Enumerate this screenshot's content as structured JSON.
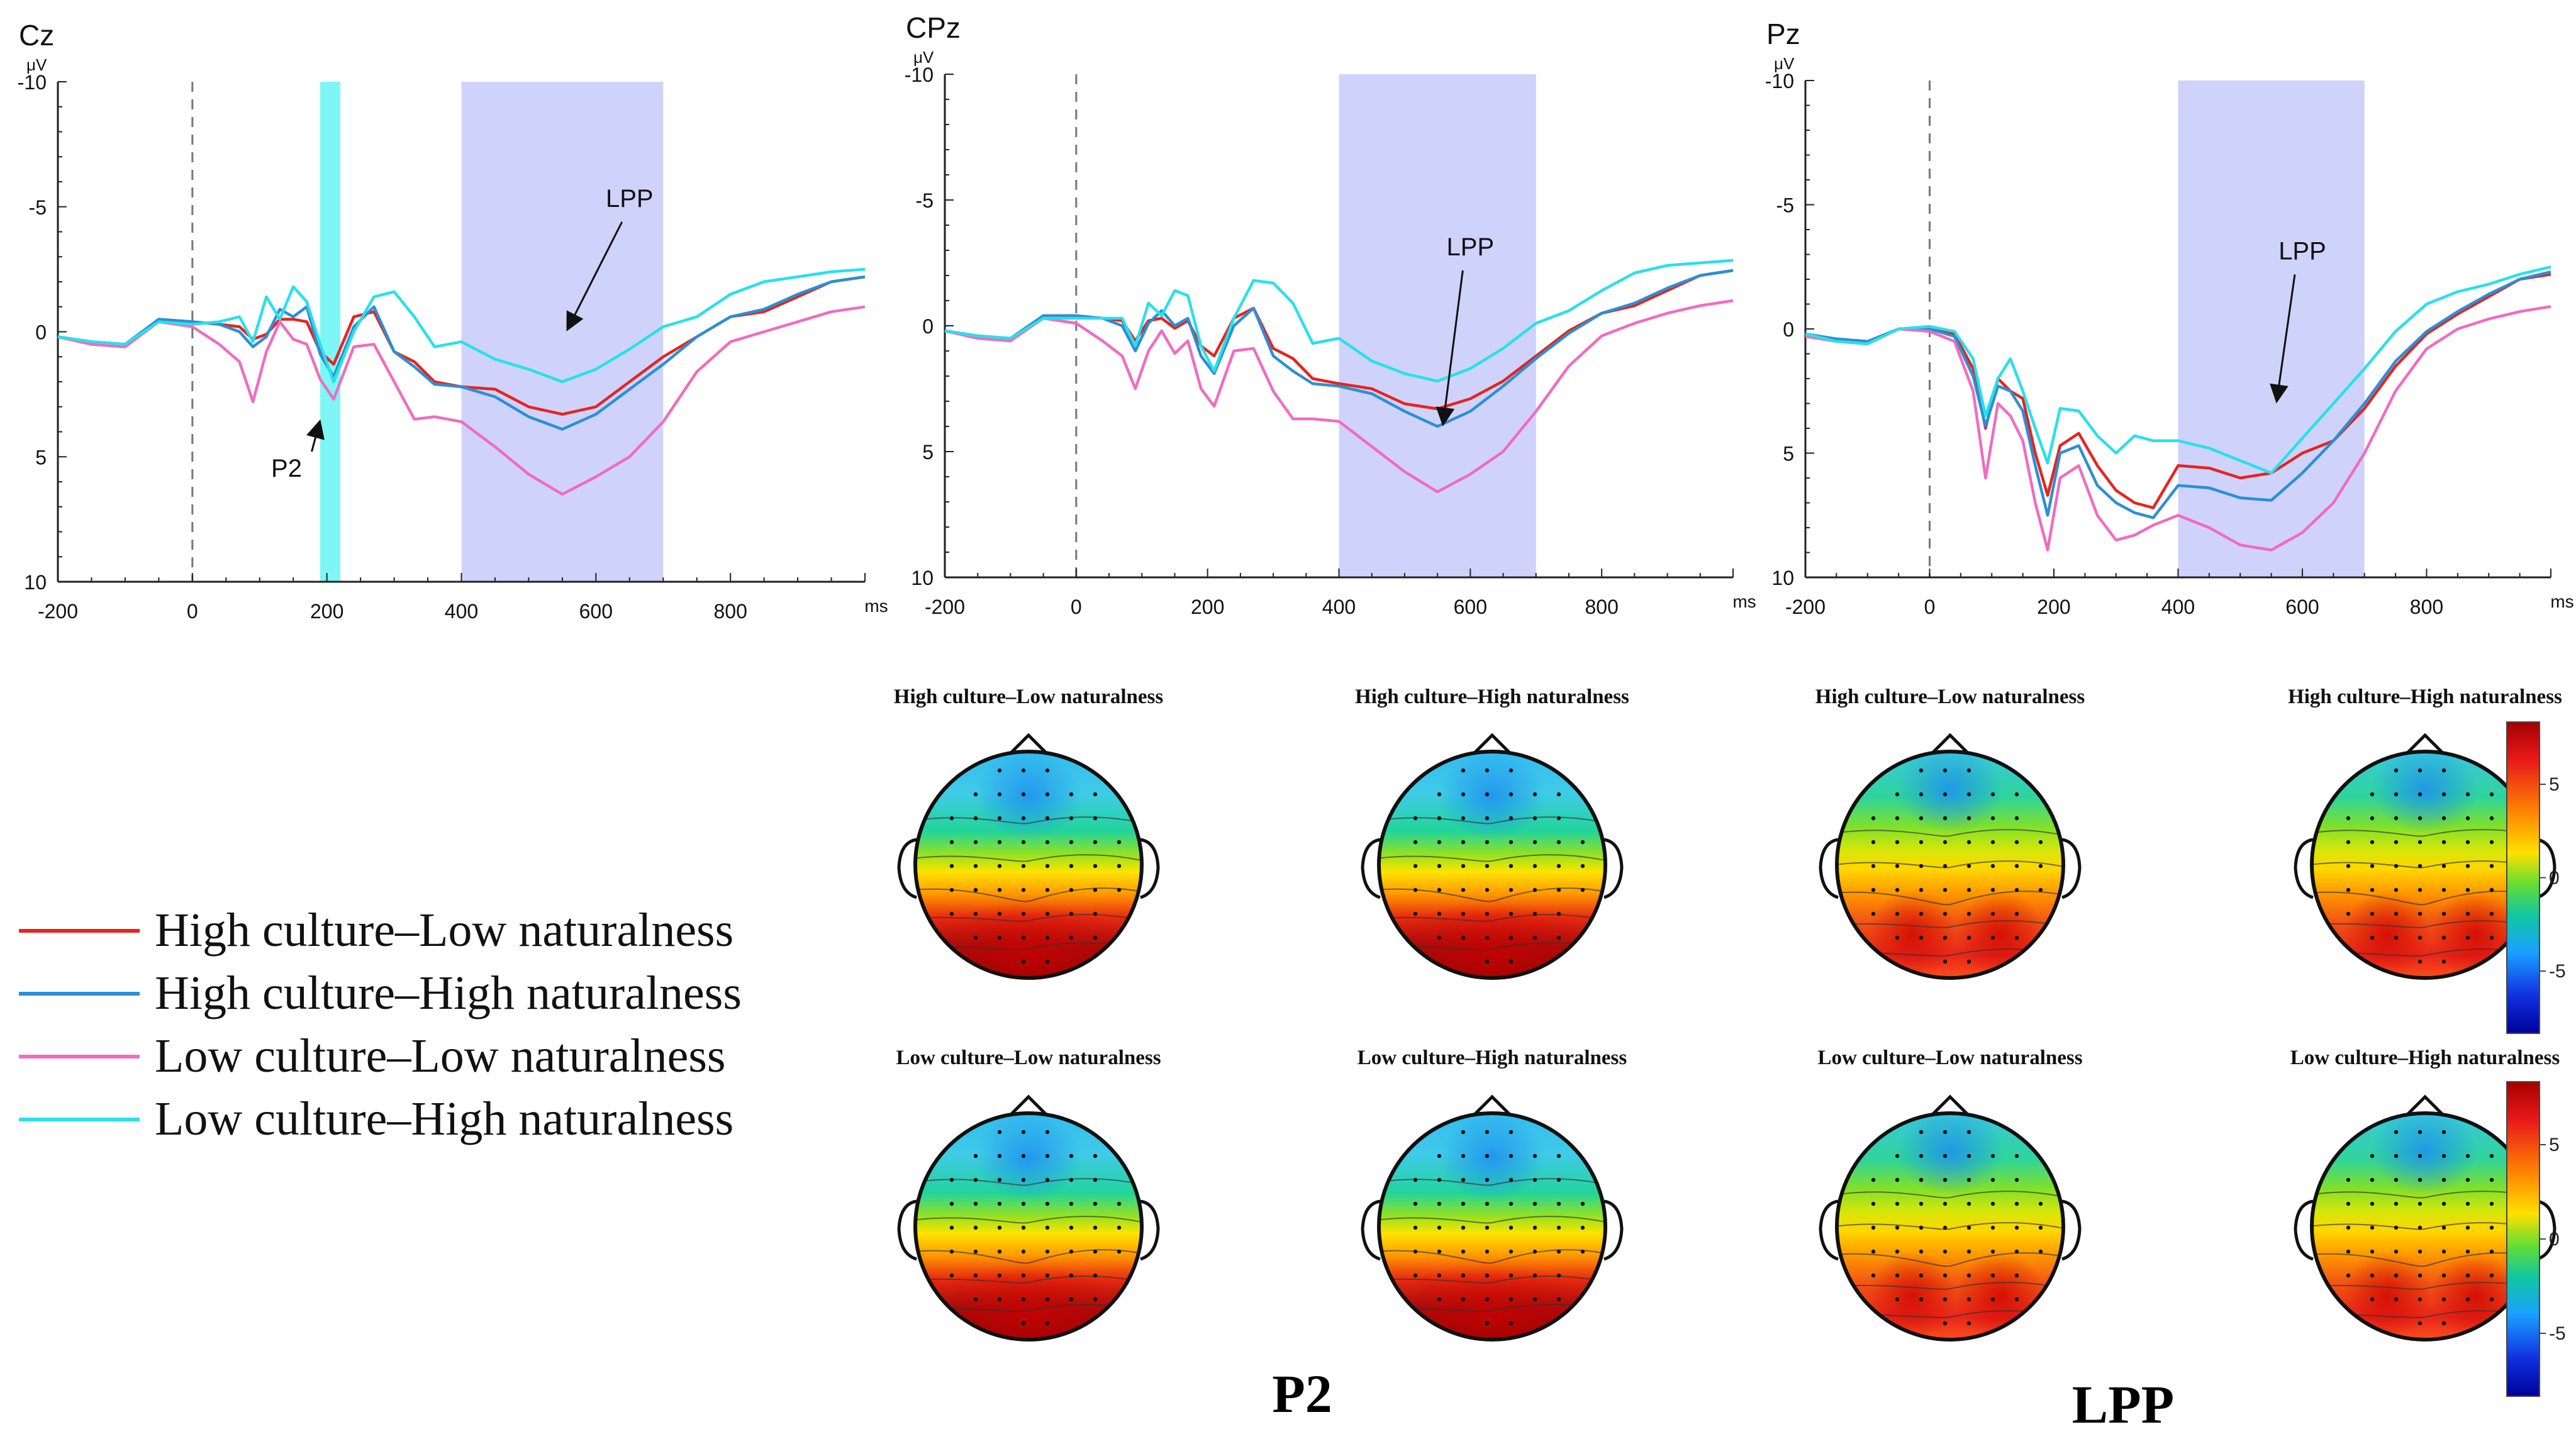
{
  "colors": {
    "s1": "#e8231e",
    "s2": "#2b8fd6",
    "s3": "#f06cc0",
    "s4": "#29e0ea",
    "p2_window": "#7ff6f6",
    "lpp_window": "#cfd3fb"
  },
  "chart_data": [
    {
      "type": "line",
      "title": "Cz",
      "ylabel": "μV",
      "xlabel": "ms",
      "xlim": [
        -200,
        1000
      ],
      "ylim": [
        10,
        -10
      ],
      "x_ticks": [
        "-200",
        "0",
        "200",
        "400",
        "600",
        "800"
      ],
      "y_ticks": [
        "-10",
        "-5",
        "0",
        "5",
        "10"
      ],
      "windows": [
        {
          "start": 190,
          "end": 220,
          "label": "P2"
        },
        {
          "start": 400,
          "end": 700,
          "label": "LPP"
        }
      ],
      "annotations": [
        {
          "text": "LPP",
          "x": 650,
          "y": -5
        },
        {
          "text": "P2",
          "x": 140,
          "y": 5.8
        }
      ],
      "x": [
        -200,
        -150,
        -100,
        -50,
        0,
        40,
        70,
        90,
        110,
        130,
        150,
        170,
        190,
        210,
        240,
        270,
        300,
        330,
        360,
        400,
        450,
        500,
        550,
        600,
        650,
        700,
        750,
        800,
        850,
        900,
        950,
        1000
      ],
      "series": [
        {
          "values": [
            0.2,
            0.5,
            0.6,
            -0.5,
            -0.4,
            -0.3,
            -0.2,
            0.3,
            0.1,
            -0.5,
            -0.5,
            -0.4,
            0.8,
            1.3,
            -0.6,
            -0.8,
            0.8,
            1.2,
            2.0,
            2.2,
            2.3,
            3.0,
            3.3,
            3.0,
            2.0,
            1.0,
            0.2,
            -0.6,
            -0.8,
            -1.4,
            -2.0,
            -2.2
          ]
        },
        {
          "values": [
            0.2,
            0.4,
            0.5,
            -0.5,
            -0.4,
            -0.3,
            0.0,
            0.6,
            0.2,
            -0.9,
            -0.6,
            -1.0,
            0.9,
            1.8,
            -0.2,
            -1.0,
            0.8,
            1.4,
            2.1,
            2.2,
            2.6,
            3.4,
            3.9,
            3.3,
            2.3,
            1.3,
            0.2,
            -0.6,
            -0.9,
            -1.5,
            -2.0,
            -2.2
          ]
        },
        {
          "values": [
            0.2,
            0.5,
            0.6,
            -0.4,
            -0.2,
            0.5,
            1.2,
            2.8,
            0.8,
            -0.4,
            0.3,
            0.5,
            1.9,
            2.7,
            0.6,
            0.5,
            2.0,
            3.5,
            3.4,
            3.6,
            4.6,
            5.7,
            6.5,
            5.8,
            5.0,
            3.6,
            1.6,
            0.4,
            0.0,
            -0.4,
            -0.8,
            -1.0
          ]
        },
        {
          "values": [
            0.2,
            0.4,
            0.5,
            -0.4,
            -0.3,
            -0.4,
            -0.6,
            0.4,
            -1.4,
            -0.5,
            -1.8,
            -1.2,
            0.5,
            2.0,
            0.0,
            -1.4,
            -1.6,
            -0.6,
            0.6,
            0.4,
            1.1,
            1.5,
            2.0,
            1.5,
            0.7,
            -0.2,
            -0.6,
            -1.5,
            -2.0,
            -2.2,
            -2.4,
            -2.5
          ]
        }
      ]
    },
    {
      "type": "line",
      "title": "CPz",
      "ylabel": "μV",
      "xlabel": "ms",
      "xlim": [
        -200,
        1000
      ],
      "ylim": [
        10,
        -10
      ],
      "x_ticks": [
        "-200",
        "0",
        "200",
        "400",
        "600",
        "800"
      ],
      "y_ticks": [
        "-10",
        "-5",
        "0",
        "5",
        "10"
      ],
      "windows": [
        {
          "start": 400,
          "end": 700,
          "label": "LPP"
        }
      ],
      "annotations": [
        {
          "text": "LPP",
          "x": 600,
          "y": -2.8
        }
      ],
      "x": [
        -200,
        -150,
        -100,
        -50,
        0,
        40,
        70,
        90,
        110,
        130,
        150,
        170,
        190,
        210,
        240,
        270,
        300,
        330,
        360,
        400,
        450,
        500,
        550,
        600,
        650,
        700,
        750,
        800,
        850,
        900,
        950,
        1000
      ],
      "series": [
        {
          "values": [
            0.2,
            0.4,
            0.5,
            -0.4,
            -0.4,
            -0.3,
            -0.2,
            0.6,
            -0.2,
            -0.3,
            0.1,
            -0.2,
            0.8,
            1.2,
            -0.3,
            -0.7,
            0.9,
            1.3,
            2.1,
            2.3,
            2.5,
            3.1,
            3.3,
            2.9,
            2.2,
            1.2,
            0.2,
            -0.5,
            -0.8,
            -1.4,
            -2.0,
            -2.2
          ]
        },
        {
          "values": [
            0.2,
            0.4,
            0.5,
            -0.4,
            -0.4,
            -0.3,
            0.0,
            1.0,
            -0.1,
            -0.6,
            0.0,
            -0.3,
            1.2,
            1.9,
            0.0,
            -0.7,
            1.2,
            1.8,
            2.3,
            2.4,
            2.7,
            3.4,
            4.0,
            3.4,
            2.4,
            1.3,
            0.3,
            -0.5,
            -0.9,
            -1.5,
            -2.0,
            -2.2
          ]
        },
        {
          "values": [
            0.2,
            0.5,
            0.6,
            -0.3,
            -0.1,
            0.6,
            1.2,
            2.5,
            1.0,
            0.2,
            1.1,
            0.6,
            2.5,
            3.2,
            1.0,
            0.9,
            2.6,
            3.7,
            3.7,
            3.8,
            4.8,
            5.8,
            6.6,
            5.9,
            5.0,
            3.4,
            1.6,
            0.4,
            -0.1,
            -0.5,
            -0.8,
            -1.0
          ]
        },
        {
          "values": [
            0.2,
            0.4,
            0.5,
            -0.3,
            -0.3,
            -0.3,
            -0.3,
            0.8,
            -0.9,
            -0.4,
            -1.4,
            -1.2,
            0.8,
            1.8,
            -0.3,
            -1.8,
            -1.7,
            -0.9,
            0.7,
            0.5,
            1.4,
            1.9,
            2.2,
            1.7,
            0.9,
            -0.1,
            -0.6,
            -1.4,
            -2.1,
            -2.4,
            -2.5,
            -2.6
          ]
        }
      ]
    },
    {
      "type": "line",
      "title": "Pz",
      "ylabel": "μV",
      "xlabel": "ms",
      "xlim": [
        -200,
        1000
      ],
      "ylim": [
        10,
        -10
      ],
      "x_ticks": [
        "-200",
        "0",
        "200",
        "400",
        "600",
        "800"
      ],
      "y_ticks": [
        "-10",
        "-5",
        "0",
        "5",
        "10"
      ],
      "windows": [
        {
          "start": 400,
          "end": 700,
          "label": "LPP"
        }
      ],
      "annotations": [
        {
          "text": "LPP",
          "x": 600,
          "y": -2.8
        }
      ],
      "x": [
        -200,
        -150,
        -100,
        -50,
        0,
        40,
        70,
        90,
        110,
        130,
        150,
        170,
        190,
        210,
        240,
        270,
        300,
        330,
        360,
        400,
        450,
        500,
        550,
        600,
        650,
        700,
        750,
        800,
        850,
        900,
        950,
        1000
      ],
      "series": [
        {
          "values": [
            0.2,
            0.5,
            0.6,
            0.0,
            0.0,
            0.2,
            1.6,
            4.0,
            2.0,
            2.5,
            2.8,
            5.0,
            6.7,
            4.7,
            4.2,
            5.5,
            6.5,
            7.0,
            7.2,
            5.5,
            5.6,
            6.0,
            5.8,
            5.0,
            4.5,
            3.2,
            1.5,
            0.2,
            -0.6,
            -1.3,
            -2.0,
            -2.2
          ]
        },
        {
          "values": [
            0.2,
            0.4,
            0.5,
            0.0,
            0.0,
            0.3,
            1.9,
            3.9,
            2.3,
            2.5,
            3.3,
            5.5,
            7.5,
            5.0,
            4.7,
            6.3,
            7.0,
            7.4,
            7.6,
            6.3,
            6.4,
            6.8,
            6.9,
            5.8,
            4.5,
            3.0,
            1.3,
            0.1,
            -0.7,
            -1.4,
            -2.0,
            -2.3
          ]
        },
        {
          "values": [
            0.3,
            0.5,
            0.6,
            0.0,
            0.1,
            0.5,
            2.5,
            6.0,
            3.0,
            3.5,
            4.5,
            7.0,
            8.9,
            6.0,
            5.5,
            7.5,
            8.5,
            8.3,
            7.9,
            7.5,
            8.0,
            8.7,
            8.9,
            8.2,
            7.0,
            5.0,
            2.5,
            0.8,
            0.0,
            -0.4,
            -0.7,
            -0.9
          ]
        },
        {
          "values": [
            0.2,
            0.5,
            0.6,
            0.0,
            -0.1,
            0.1,
            1.2,
            3.5,
            2.0,
            1.2,
            2.5,
            4.0,
            5.4,
            3.2,
            3.3,
            4.3,
            5.0,
            4.3,
            4.5,
            4.5,
            4.8,
            5.3,
            5.8,
            4.4,
            3.0,
            1.6,
            0.1,
            -1.0,
            -1.5,
            -1.8,
            -2.2,
            -2.5
          ]
        }
      ]
    }
  ],
  "legend": [
    {
      "label": "High culture–Low naturalness",
      "color_key": "s1"
    },
    {
      "label": "High culture–High naturalness",
      "color_key": "s2"
    },
    {
      "label": "Low culture–Low naturalness",
      "color_key": "s3"
    },
    {
      "label": "Low culture–High naturalness",
      "color_key": "s4"
    }
  ],
  "topomaps": {
    "p2": [
      {
        "label": "High culture–Low naturalness",
        "pattern": "p2"
      },
      {
        "label": "High culture–High naturalness",
        "pattern": "p2"
      },
      {
        "label": "Low culture–Low naturalness",
        "pattern": "p2"
      },
      {
        "label": "Low culture–High naturalness",
        "pattern": "p2"
      }
    ],
    "lpp": [
      {
        "label": "High culture–Low naturalness",
        "pattern": "lpp"
      },
      {
        "label": "High culture–High naturalness",
        "pattern": "lpp"
      },
      {
        "label": "Low culture–Low naturalness",
        "pattern": "lpp"
      },
      {
        "label": "Low culture–High naturalness",
        "pattern": "lpp"
      }
    ],
    "p2_caption": "P2",
    "lpp_caption": "LPP",
    "colorbar_ticks": [
      "5",
      "0",
      "-5"
    ]
  }
}
